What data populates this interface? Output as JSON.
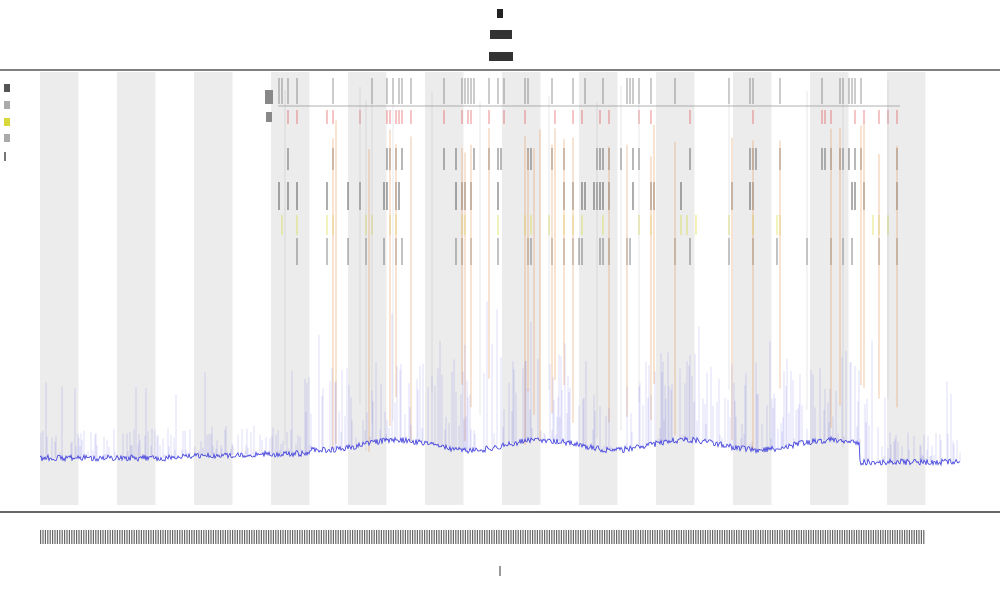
{
  "chart_data": {
    "type": "line",
    "title": "",
    "subtitle": "",
    "xlabel": "",
    "ylabel": "",
    "band_count": 12,
    "grid": false,
    "legend_position": "top-left",
    "colors": {
      "series": "#3b3bdc",
      "orange_marks": "#e07a2a",
      "yellow_marks": "#d8d83a",
      "red_marks": "#e03a3a",
      "dark_marks": "#333333",
      "band": "#ececec",
      "axis": "#444444"
    }
  }
}
